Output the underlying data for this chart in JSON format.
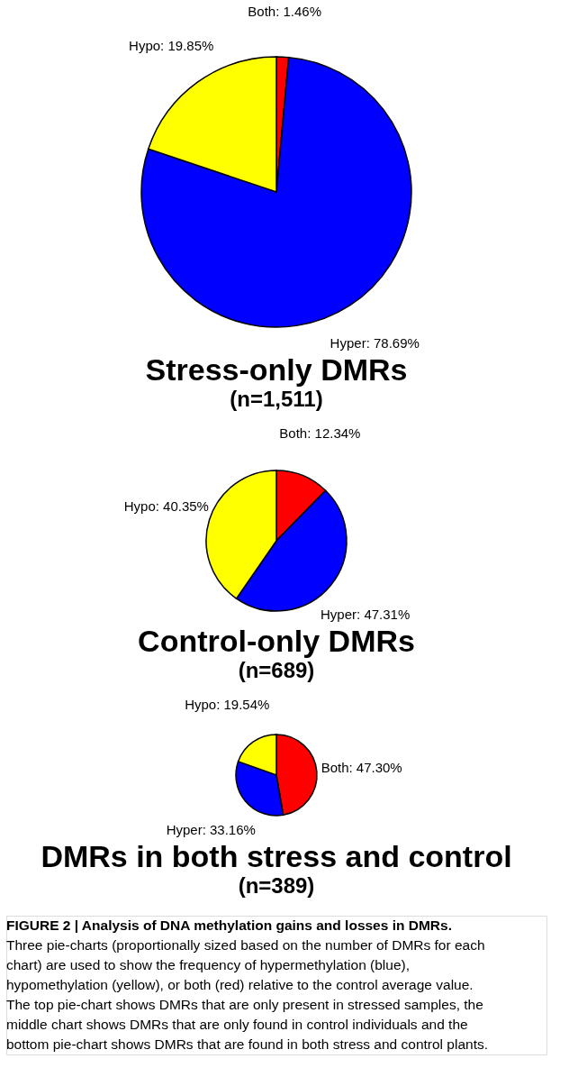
{
  "chart_data": [
    {
      "type": "pie",
      "title": "Stress-only DMRs",
      "subtitle": "(n=1,511)",
      "categories": [
        "Both",
        "Hyper",
        "Hypo"
      ],
      "values": [
        1.46,
        78.69,
        19.85
      ],
      "colors": [
        "#ff0000",
        "#0000ff",
        "#ffff00"
      ],
      "value_labels": [
        "1.46%",
        "78.69%",
        "19.85%"
      ],
      "legend": false
    },
    {
      "type": "pie",
      "title": "Control-only DMRs",
      "subtitle": "(n=689)",
      "categories": [
        "Both",
        "Hyper",
        "Hypo"
      ],
      "values": [
        12.34,
        47.31,
        40.35
      ],
      "colors": [
        "#ff0000",
        "#0000ff",
        "#ffff00"
      ],
      "value_labels": [
        "12.34%",
        "47.31%",
        "40.35%"
      ],
      "legend": false
    },
    {
      "type": "pie",
      "title": "DMRs in both stress and control",
      "subtitle": "(n=389)",
      "categories": [
        "Both",
        "Hyper",
        "Hypo"
      ],
      "values": [
        47.3,
        33.16,
        19.54
      ],
      "colors": [
        "#ff0000",
        "#0000ff",
        "#ffff00"
      ],
      "value_labels": [
        "47.30%",
        "33.16%",
        "19.54%"
      ],
      "legend": false,
      "annotations": [
        "FIGURE 2 | Analysis of DNA methylation gains and losses in DMRs.",
        "Three pie-charts (proportionally sized based on the number of DMRs for each",
        "chart) are used to show the frequency of hypermethylation (blue),",
        "hypomethylation (yellow), or both (red) relative to the control average value.",
        "The top pie-chart shows DMRs that are only present in stressed samples, the",
        "middle chart shows DMRs that are only found in control individuals and the",
        "bottom pie-chart shows DMRs that are found in both stress and control plants."
      ]
    }
  ]
}
